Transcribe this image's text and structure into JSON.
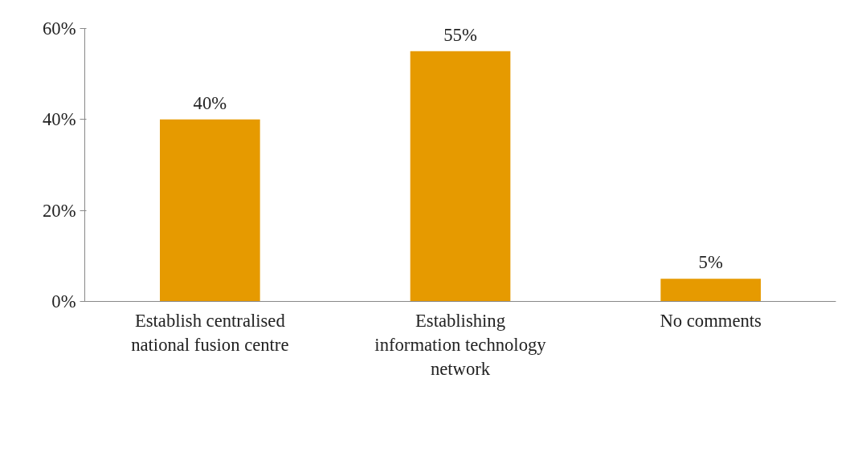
{
  "chart_data": {
    "type": "bar",
    "categories": [
      "Establish centralised national fusion centre",
      "Establishing information technology network",
      "No comments"
    ],
    "values": [
      40,
      55,
      5
    ],
    "value_labels": [
      "40%",
      "55%",
      "5%"
    ],
    "color": "#e69a00",
    "ylim": [
      0,
      60
    ],
    "yticks": [
      {
        "value": 0,
        "label": "0%"
      },
      {
        "value": 20,
        "label": "20%"
      },
      {
        "value": 40,
        "label": "40%"
      },
      {
        "value": 60,
        "label": "60%"
      }
    ]
  }
}
